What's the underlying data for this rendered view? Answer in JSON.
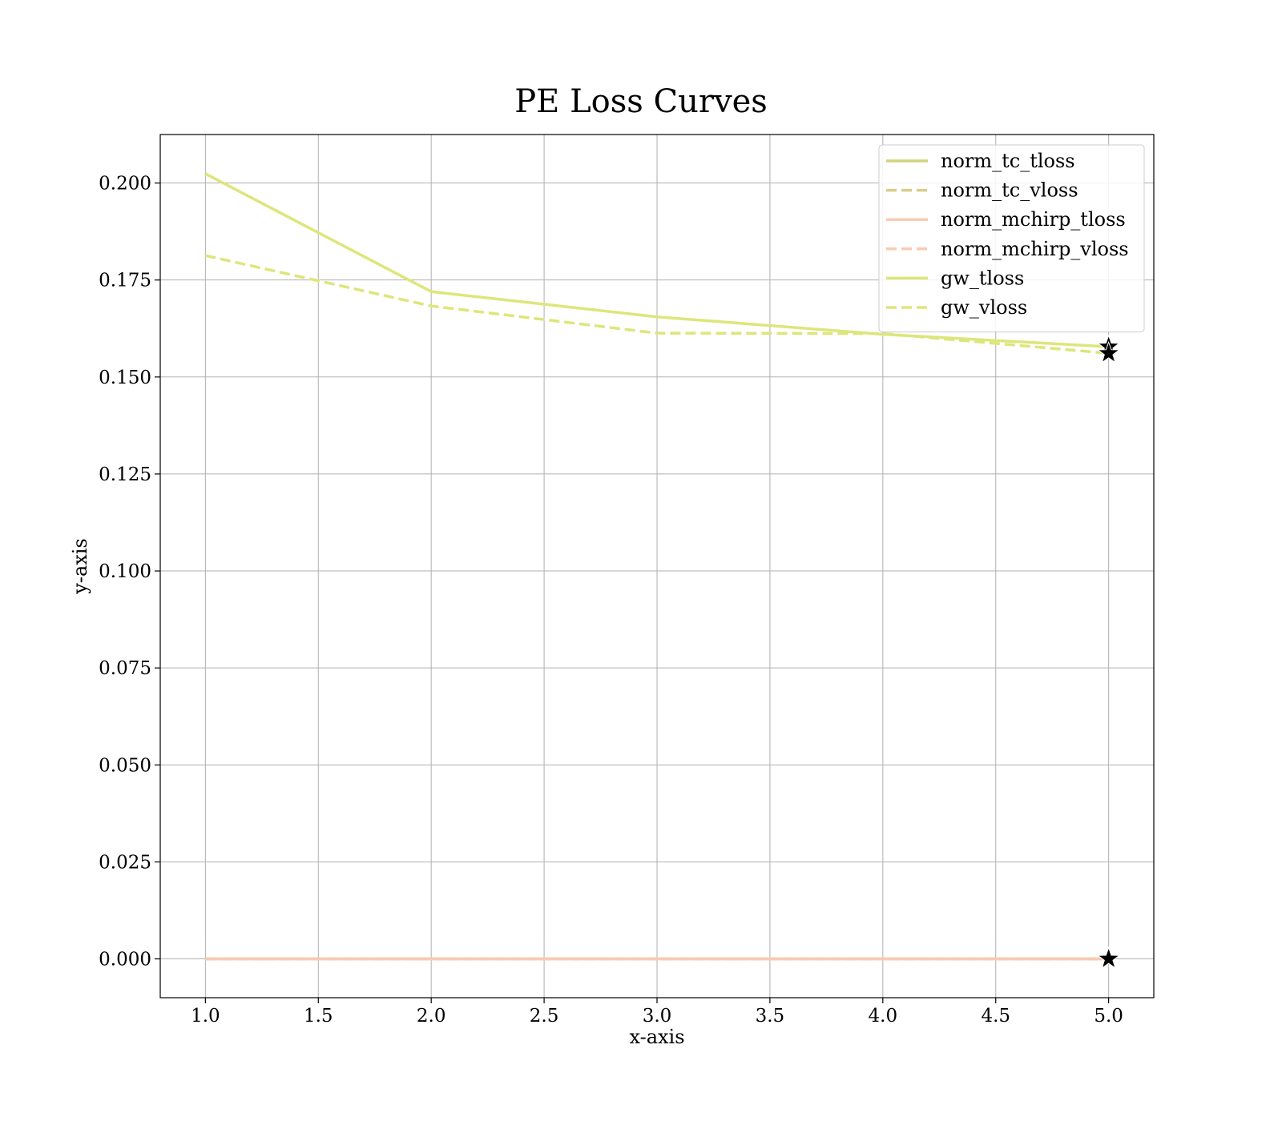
{
  "chart_data": {
    "type": "line",
    "title": "PE Loss Curves",
    "xlabel": "x-axis",
    "ylabel": "y-axis",
    "xlim": [
      0.8,
      5.2
    ],
    "ylim": [
      -0.01,
      0.2125
    ],
    "x_ticks": [
      1.0,
      1.5,
      2.0,
      2.5,
      3.0,
      3.5,
      4.0,
      4.5,
      5.0
    ],
    "x_tick_labels": [
      "1.0",
      "1.5",
      "2.0",
      "2.5",
      "3.0",
      "3.5",
      "4.0",
      "4.5",
      "5.0"
    ],
    "y_ticks": [
      0.0,
      0.025,
      0.05,
      0.075,
      0.1,
      0.125,
      0.15,
      0.175,
      0.2
    ],
    "y_tick_labels": [
      "0.000",
      "0.025",
      "0.050",
      "0.075",
      "0.100",
      "0.125",
      "0.150",
      "0.175",
      "0.200"
    ],
    "grid": true,
    "legend_position": "top-right",
    "x": [
      1,
      2,
      3,
      4,
      5
    ],
    "series": [
      {
        "name": "norm_tc_tloss",
        "color": "#d4d37f",
        "dash": "solid",
        "values": [
          0.0,
          0.0,
          0.0,
          0.0,
          0.0
        ]
      },
      {
        "name": "norm_tc_vloss",
        "color": "#d9cc8c",
        "dash": "dashed",
        "values": [
          0.0,
          0.0,
          0.0,
          0.0,
          0.0
        ]
      },
      {
        "name": "norm_mchirp_tloss",
        "color": "#f8cbb4",
        "dash": "solid",
        "values": [
          0.0,
          0.0,
          0.0,
          0.0,
          0.0
        ]
      },
      {
        "name": "norm_mchirp_vloss",
        "color": "#f8cbb4",
        "dash": "dashed",
        "values": [
          0.0,
          0.0,
          0.0,
          0.0,
          0.0
        ]
      },
      {
        "name": "gw_tloss",
        "color": "#dde67a",
        "dash": "solid",
        "values": [
          0.2024,
          0.172,
          0.1655,
          0.161,
          0.1578
        ]
      },
      {
        "name": "gw_vloss",
        "color": "#dde67a",
        "dash": "dashed",
        "values": [
          0.1813,
          0.1683,
          0.1613,
          0.1612,
          0.1561
        ]
      }
    ],
    "final_markers": "star",
    "marker_color": "#000000"
  }
}
